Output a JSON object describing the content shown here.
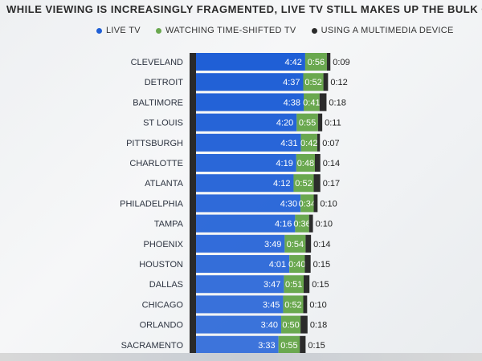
{
  "chart_data": {
    "type": "bar",
    "stacked": true,
    "orientation": "horizontal",
    "title": "WHILE VIEWING IS INCREASINGLY FRAGMENTED, LIVE TV STILL MAKES UP THE BULK OF HOW WE WATCH",
    "legend_position": "top",
    "categories": [
      "CLEVELAND",
      "DETROIT",
      "BALTIMORE",
      "ST LOUIS",
      "PITTSBURGH",
      "CHARLOTTE",
      "ATLANTA",
      "PHILADELPHIA",
      "TAMPA",
      "PHOENIX",
      "HOUSTON",
      "DALLAS",
      "CHICAGO",
      "ORLANDO",
      "SACRAMENTO"
    ],
    "series": [
      {
        "name": "LIVE TV",
        "color": "#1f5fd6",
        "labels": [
          "4:42",
          "4:37",
          "4:38",
          "4:20",
          "4:31",
          "4:19",
          "4:12",
          "4:30",
          "4:16",
          "3:49",
          "4:01",
          "3:47",
          "3:45",
          "3:40",
          "3:33"
        ],
        "values": [
          282,
          277,
          278,
          260,
          271,
          259,
          252,
          270,
          256,
          229,
          241,
          227,
          225,
          220,
          213
        ]
      },
      {
        "name": "WATCHING TIME-SHIFTED TV",
        "color": "#6aa84f",
        "labels": [
          "0:56",
          "0:52",
          "0:41",
          "0:55",
          "0:42",
          "0:48",
          "0:52",
          "0:34",
          "0:36",
          "0:54",
          "0:40",
          "0:51",
          "0:52",
          "0:50",
          "0:55"
        ],
        "values": [
          56,
          52,
          41,
          55,
          42,
          48,
          52,
          34,
          36,
          54,
          40,
          51,
          52,
          50,
          55
        ]
      },
      {
        "name": "USING A MULTIMEDIA DEVICE",
        "color": "#2b2b2b",
        "labels": [
          "0:09",
          "0:12",
          "0:18",
          "0:11",
          "0:07",
          "0:14",
          "0:17",
          "0:10",
          "0:10",
          "0:14",
          "0:15",
          "0:15",
          "0:10",
          "0:18",
          "0:15"
        ],
        "values": [
          9,
          12,
          18,
          11,
          7,
          14,
          17,
          10,
          10,
          14,
          15,
          15,
          10,
          18,
          15
        ]
      }
    ],
    "units": "minutes"
  }
}
